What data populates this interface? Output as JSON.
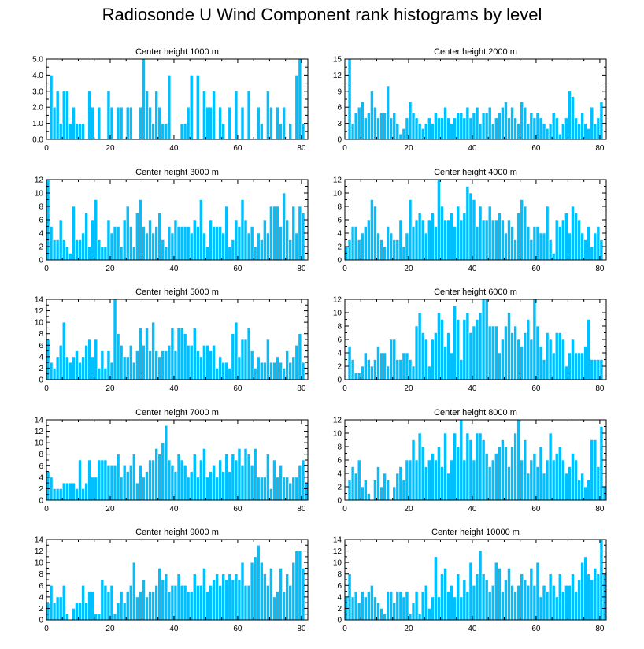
{
  "title": "Radiosonde U Wind Component rank histograms by level",
  "colors": {
    "bar": "#00bfff",
    "bar_edge": "#ffffff",
    "axis": "#000000"
  },
  "chart_data": [
    {
      "type": "bar",
      "title": "Center height 1000 m",
      "xlim": [
        0,
        82
      ],
      "ylim": [
        0,
        5
      ],
      "xticks": [
        0,
        20,
        40,
        60,
        80
      ],
      "yticks": [
        0.0,
        1.0,
        2.0,
        3.0,
        4.0,
        5.0
      ],
      "ytick_decimals": 1,
      "values": [
        0,
        4,
        2,
        3,
        1,
        3,
        3,
        1,
        2,
        1,
        1,
        1,
        0,
        3,
        2,
        0,
        2,
        0,
        0,
        3,
        2,
        0,
        2,
        2,
        0,
        2,
        2,
        0,
        0,
        2,
        5,
        3,
        2,
        1,
        3,
        2,
        1,
        1,
        4,
        0,
        0,
        0,
        1,
        1,
        2,
        4,
        0,
        4,
        0,
        3,
        2,
        2,
        3,
        0,
        2,
        1,
        0,
        2,
        0,
        3,
        0,
        2,
        0,
        3,
        0,
        0,
        2,
        1,
        0,
        3,
        2,
        0,
        2,
        1,
        2,
        0,
        1,
        0,
        4,
        5,
        1,
        0
      ]
    },
    {
      "type": "bar",
      "title": "Center height 2000 m",
      "xlim": [
        0,
        82
      ],
      "ylim": [
        0,
        15
      ],
      "xticks": [
        0,
        20,
        40,
        60,
        80
      ],
      "yticks": [
        0,
        3,
        6,
        9,
        12,
        15
      ],
      "ytick_decimals": 0,
      "values": [
        0,
        15,
        3,
        5,
        6,
        7,
        4,
        5,
        9,
        6,
        4,
        5,
        5,
        10,
        4,
        5,
        3,
        1,
        2,
        4,
        7,
        5,
        4,
        3,
        2,
        3,
        4,
        3,
        5,
        4,
        4,
        6,
        4,
        3,
        4,
        5,
        5,
        4,
        6,
        4,
        5,
        6,
        3,
        5,
        5,
        6,
        3,
        4,
        5,
        6,
        7,
        4,
        6,
        4,
        3,
        7,
        6,
        3,
        5,
        4,
        5,
        4,
        3,
        2,
        3,
        5,
        4,
        1,
        3,
        4,
        9,
        8,
        4,
        3,
        5,
        3,
        2,
        6,
        3,
        4,
        7,
        0
      ]
    },
    {
      "type": "bar",
      "title": "Center height 3000 m",
      "xlim": [
        0,
        82
      ],
      "ylim": [
        0,
        12
      ],
      "xticks": [
        0,
        20,
        40,
        60,
        80
      ],
      "yticks": [
        0,
        2,
        4,
        6,
        8,
        10,
        12
      ],
      "ytick_decimals": 0,
      "values": [
        12,
        5,
        3,
        3,
        6,
        3,
        2,
        1,
        8,
        3,
        3,
        4,
        7,
        2,
        6,
        9,
        3,
        2,
        2,
        6,
        4,
        5,
        5,
        2,
        6,
        8,
        5,
        2,
        7,
        9,
        5,
        4,
        6,
        4,
        5,
        7,
        3,
        2,
        5,
        4,
        6,
        5,
        5,
        5,
        5,
        4,
        6,
        5,
        9,
        4,
        2,
        6,
        5,
        5,
        5,
        4,
        8,
        2,
        3,
        6,
        5,
        9,
        6,
        4,
        5,
        2,
        4,
        3,
        6,
        4,
        8,
        8,
        8,
        5,
        10,
        6,
        3,
        8,
        4,
        8,
        7,
        0
      ]
    },
    {
      "type": "bar",
      "title": "Center height 4000 m",
      "xlim": [
        0,
        82
      ],
      "ylim": [
        0,
        12
      ],
      "xticks": [
        0,
        20,
        40,
        60,
        80
      ],
      "yticks": [
        0,
        2,
        4,
        6,
        8,
        10,
        12
      ],
      "ytick_decimals": 0,
      "values": [
        2,
        3,
        5,
        5,
        3,
        4,
        5,
        6,
        9,
        8,
        4,
        3,
        2,
        5,
        4,
        3,
        3,
        6,
        2,
        4,
        9,
        5,
        6,
        7,
        6,
        4,
        6,
        7,
        5,
        12,
        8,
        6,
        6,
        7,
        5,
        8,
        6,
        7,
        11,
        10,
        9,
        5,
        8,
        6,
        6,
        8,
        6,
        6,
        7,
        6,
        4,
        6,
        5,
        3,
        7,
        9,
        8,
        5,
        3,
        5,
        5,
        4,
        4,
        8,
        3,
        1,
        6,
        5,
        6,
        7,
        4,
        8,
        7,
        6,
        4,
        3,
        5,
        2,
        4,
        5,
        3,
        0
      ]
    },
    {
      "type": "bar",
      "title": "Center height 5000 m",
      "xlim": [
        0,
        82
      ],
      "ylim": [
        0,
        14
      ],
      "xticks": [
        0,
        20,
        40,
        60,
        80
      ],
      "yticks": [
        0,
        2,
        4,
        6,
        8,
        10,
        12,
        14
      ],
      "ytick_decimals": 0,
      "values": [
        7,
        3,
        2,
        4,
        6,
        10,
        4,
        3,
        4,
        5,
        3,
        4,
        6,
        7,
        4,
        7,
        2,
        5,
        2,
        5,
        3,
        14,
        8,
        6,
        4,
        4,
        6,
        3,
        5,
        9,
        6,
        9,
        5,
        10,
        5,
        4,
        5,
        5,
        6,
        9,
        5,
        9,
        9,
        8,
        6,
        6,
        9,
        5,
        4,
        6,
        6,
        5,
        6,
        2,
        4,
        3,
        3,
        2,
        8,
        10,
        4,
        7,
        7,
        9,
        5,
        2,
        4,
        3,
        3,
        7,
        3,
        3,
        4,
        3,
        2,
        5,
        3,
        4,
        6,
        8,
        3,
        0
      ]
    },
    {
      "type": "bar",
      "title": "Center height 6000 m",
      "xlim": [
        0,
        82
      ],
      "ylim": [
        0,
        12
      ],
      "xticks": [
        0,
        20,
        40,
        60,
        80
      ],
      "yticks": [
        0,
        2,
        4,
        6,
        8,
        10,
        12
      ],
      "ytick_decimals": 0,
      "values": [
        0,
        5,
        3,
        1,
        1,
        2,
        4,
        3,
        2,
        3,
        5,
        4,
        4,
        2,
        6,
        6,
        3,
        3,
        4,
        4,
        3,
        2,
        8,
        10,
        7,
        6,
        2,
        6,
        7,
        10,
        9,
        5,
        7,
        4,
        11,
        9,
        3,
        9,
        10,
        7,
        8,
        9,
        10,
        12,
        12,
        8,
        8,
        8,
        4,
        6,
        8,
        10,
        7,
        8,
        6,
        5,
        7,
        9,
        6,
        12,
        8,
        5,
        3,
        7,
        6,
        4,
        7,
        7,
        6,
        2,
        4,
        6,
        4,
        4,
        4,
        5,
        9,
        3,
        3,
        3,
        3,
        0
      ]
    },
    {
      "type": "bar",
      "title": "Center height 7000 m",
      "xlim": [
        0,
        82
      ],
      "ylim": [
        0,
        14
      ],
      "xticks": [
        0,
        20,
        40,
        60,
        80
      ],
      "yticks": [
        0,
        2,
        4,
        6,
        8,
        10,
        12,
        14
      ],
      "ytick_decimals": 0,
      "values": [
        5,
        4,
        2,
        2,
        2,
        3,
        3,
        3,
        3,
        2,
        7,
        2,
        3,
        7,
        4,
        4,
        7,
        7,
        7,
        6,
        6,
        6,
        8,
        4,
        6,
        5,
        6,
        8,
        3,
        6,
        4,
        5,
        7,
        7,
        9,
        8,
        10,
        13,
        7,
        6,
        5,
        8,
        7,
        6,
        4,
        5,
        8,
        4,
        7,
        9,
        4,
        5,
        6,
        4,
        7,
        5,
        8,
        5,
        8,
        7,
        9,
        6,
        9,
        8,
        6,
        9,
        4,
        4,
        4,
        8,
        2,
        7,
        4,
        6,
        4,
        4,
        3,
        4,
        4,
        6,
        7,
        3
      ]
    },
    {
      "type": "bar",
      "title": "Center height 8000 m",
      "xlim": [
        0,
        82
      ],
      "ylim": [
        0,
        12
      ],
      "xticks": [
        0,
        20,
        40,
        60,
        80
      ],
      "yticks": [
        0,
        2,
        4,
        6,
        8,
        10,
        12
      ],
      "ytick_decimals": 0,
      "values": [
        0,
        3,
        5,
        4,
        6,
        2,
        3,
        1,
        0,
        3,
        5,
        2,
        4,
        3,
        0,
        2,
        4,
        5,
        3,
        6,
        6,
        9,
        6,
        10,
        8,
        5,
        6,
        7,
        6,
        8,
        5,
        10,
        4,
        6,
        10,
        8,
        12,
        6,
        10,
        9,
        6,
        10,
        10,
        9,
        7,
        5,
        6,
        7,
        8,
        9,
        8,
        5,
        8,
        10,
        12,
        6,
        9,
        4,
        6,
        7,
        5,
        8,
        4,
        6,
        10,
        6,
        7,
        8,
        6,
        4,
        5,
        7,
        6,
        3,
        4,
        2,
        3,
        9,
        9,
        5,
        11,
        2
      ]
    },
    {
      "type": "bar",
      "title": "Center height 9000 m",
      "xlim": [
        0,
        82
      ],
      "ylim": [
        0,
        14
      ],
      "xticks": [
        0,
        20,
        40,
        60,
        80
      ],
      "yticks": [
        0,
        2,
        4,
        6,
        8,
        10,
        12,
        14
      ],
      "ytick_decimals": 0,
      "values": [
        3,
        6,
        3,
        4,
        4,
        6,
        1,
        0,
        2,
        3,
        3,
        6,
        3,
        5,
        5,
        1,
        1,
        7,
        6,
        5,
        6,
        1,
        3,
        5,
        3,
        5,
        6,
        10,
        4,
        5,
        7,
        4,
        5,
        5,
        6,
        9,
        7,
        8,
        5,
        6,
        6,
        8,
        6,
        6,
        5,
        5,
        8,
        6,
        6,
        9,
        5,
        6,
        7,
        8,
        6,
        8,
        7,
        8,
        7,
        8,
        7,
        10,
        6,
        6,
        10,
        11,
        13,
        10,
        8,
        6,
        9,
        4,
        5,
        9,
        5,
        8,
        6,
        10,
        12,
        12,
        9,
        0
      ]
    },
    {
      "type": "bar",
      "title": "Center height 10000 m",
      "xlim": [
        0,
        82
      ],
      "ylim": [
        0,
        14
      ],
      "xticks": [
        0,
        20,
        40,
        60,
        80
      ],
      "yticks": [
        0,
        2,
        4,
        6,
        8,
        10,
        12,
        14
      ],
      "ytick_decimals": 0,
      "values": [
        4,
        8,
        4,
        5,
        3,
        5,
        4,
        5,
        6,
        4,
        3,
        2,
        1,
        5,
        5,
        3,
        5,
        5,
        4,
        5,
        1,
        3,
        5,
        1,
        5,
        6,
        2,
        4,
        11,
        4,
        8,
        9,
        5,
        6,
        4,
        8,
        4,
        7,
        5,
        10,
        6,
        8,
        12,
        8,
        7,
        5,
        6,
        10,
        9,
        5,
        7,
        9,
        6,
        5,
        6,
        8,
        7,
        6,
        9,
        6,
        10,
        4,
        6,
        5,
        8,
        6,
        4,
        8,
        5,
        6,
        6,
        8,
        5,
        7,
        10,
        11,
        8,
        7,
        9,
        8,
        14,
        8
      ]
    }
  ]
}
